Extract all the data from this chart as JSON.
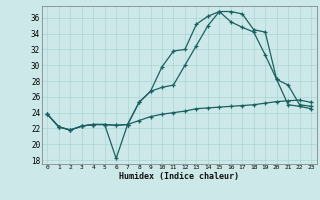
{
  "xlabel": "Humidex (Indice chaleur)",
  "bg_color": "#cce8e8",
  "grid_color": "#aad4d4",
  "line_color": "#1a6060",
  "ylim": [
    17.5,
    37.5
  ],
  "xlim": [
    -0.5,
    23.5
  ],
  "yticks": [
    18,
    20,
    22,
    24,
    26,
    28,
    30,
    32,
    34,
    36
  ],
  "xticks": [
    0,
    1,
    2,
    3,
    4,
    5,
    6,
    7,
    8,
    9,
    10,
    11,
    12,
    13,
    14,
    15,
    16,
    17,
    18,
    19,
    20,
    21,
    22,
    23
  ],
  "line1_x": [
    0,
    1,
    2,
    3,
    4,
    5,
    6,
    7,
    8,
    9,
    10,
    11,
    12,
    13,
    14,
    15,
    16,
    17,
    18,
    19,
    20,
    21,
    22,
    23
  ],
  "line1_y": [
    23.8,
    22.2,
    21.8,
    22.3,
    22.5,
    22.5,
    22.4,
    22.5,
    25.3,
    26.7,
    29.8,
    31.8,
    32.0,
    35.2,
    36.2,
    36.8,
    36.8,
    36.5,
    34.5,
    34.2,
    28.2,
    27.5,
    25.0,
    24.8
  ],
  "line2_x": [
    0,
    1,
    2,
    3,
    4,
    5,
    6,
    7,
    8,
    9,
    10,
    11,
    12,
    13,
    14,
    15,
    16,
    17,
    18,
    19,
    20,
    21,
    22,
    23
  ],
  "line2_y": [
    23.8,
    22.2,
    21.8,
    22.3,
    22.5,
    22.5,
    18.2,
    22.5,
    25.3,
    26.7,
    27.2,
    27.5,
    30.0,
    32.5,
    35.0,
    36.8,
    35.5,
    34.8,
    34.2,
    31.3,
    28.2,
    25.0,
    24.8,
    24.5
  ],
  "line3_x": [
    0,
    1,
    2,
    3,
    4,
    5,
    6,
    7,
    8,
    9,
    10,
    11,
    12,
    13,
    14,
    15,
    16,
    17,
    18,
    19,
    20,
    21,
    22,
    23
  ],
  "line3_y": [
    23.8,
    22.2,
    21.8,
    22.3,
    22.5,
    22.5,
    22.4,
    22.5,
    23.0,
    23.5,
    23.8,
    24.0,
    24.2,
    24.5,
    24.6,
    24.7,
    24.8,
    24.9,
    25.0,
    25.2,
    25.4,
    25.5,
    25.6,
    25.3
  ]
}
